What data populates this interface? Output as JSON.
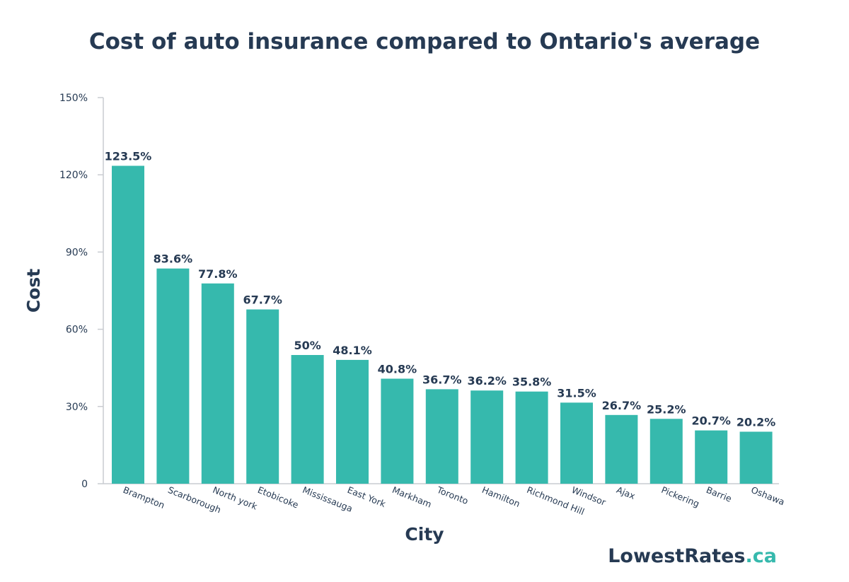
{
  "colors": {
    "bar": "#36b9ad",
    "text": "#263a53",
    "axis": "#c9ccd1",
    "brand_accent": "#36b9ad"
  },
  "brand": {
    "main": "LowestRates",
    "suffix": ".ca"
  },
  "chart_data": {
    "type": "bar",
    "title": "Cost of auto insurance compared to Ontario's average",
    "xlabel": "City",
    "ylabel": "Cost",
    "ylim": [
      0,
      150
    ],
    "yticks": [
      0,
      30,
      60,
      90,
      120,
      150
    ],
    "ytick_labels": [
      "0",
      "30%",
      "60%",
      "90%",
      "120%",
      "150%"
    ],
    "grid": false,
    "categories": [
      "Brampton",
      "Scarborough",
      "North york",
      "Etobicoke",
      "Mississauga",
      "East York",
      "Markham",
      "Toronto",
      "Hamilton",
      "Richmond Hill",
      "Windsor",
      "Ajax",
      "Pickering",
      "Barrie",
      "Oshawa"
    ],
    "values": [
      123.5,
      83.6,
      77.8,
      67.7,
      50,
      48.1,
      40.8,
      36.7,
      36.2,
      35.8,
      31.5,
      26.7,
      25.2,
      20.7,
      20.2
    ],
    "data_labels": [
      "123.5%",
      "83.6%",
      "77.8%",
      "67.7%",
      "50%",
      "48.1%",
      "40.8%",
      "36.7%",
      "36.2%",
      "35.8%",
      "31.5%",
      "26.7%",
      "25.2%",
      "20.7%",
      "20.2%"
    ]
  }
}
